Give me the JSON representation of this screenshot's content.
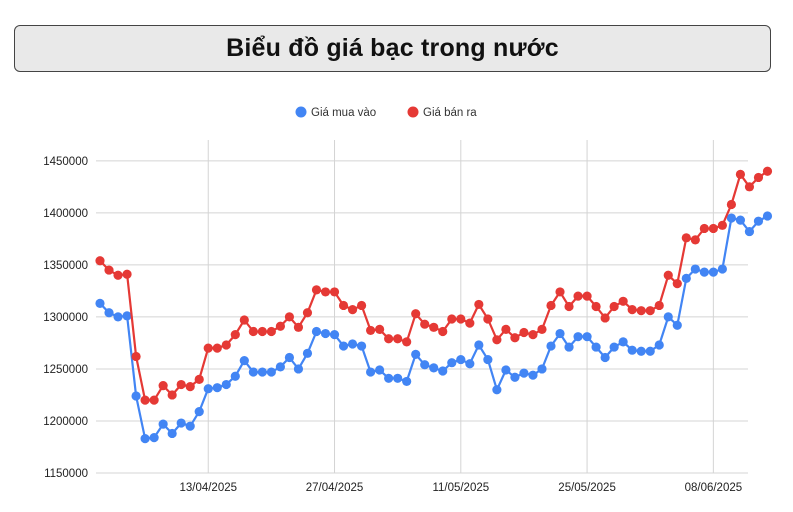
{
  "title": "Biểu đồ giá bạc trong nước",
  "colors": {
    "buy": "#4285F4",
    "sell": "#E53935",
    "grid": "#d4d4d4"
  },
  "chart_data": {
    "type": "line",
    "title": "Biểu đồ giá bạc trong nước",
    "xlabel": "",
    "ylabel": "",
    "ylim": [
      1150000,
      1470000
    ],
    "yticks": [
      1150000,
      1200000,
      1250000,
      1300000,
      1350000,
      1400000,
      1450000
    ],
    "ytick_labels": [
      "1150000",
      "1200000",
      "1250000",
      "1300000",
      "1350000",
      "1400000",
      "1450000"
    ],
    "xticks": [
      {
        "index": 12,
        "label": "13/04/2025"
      },
      {
        "index": 26,
        "label": "27/04/2025"
      },
      {
        "index": 40,
        "label": "11/05/2025"
      },
      {
        "index": 54,
        "label": "25/05/2025"
      },
      {
        "index": 68,
        "label": "08/06/2025"
      }
    ],
    "grid": true,
    "legend_position": "top",
    "series": [
      {
        "name": "Giá mua vào",
        "color": "#4285F4",
        "values": [
          1313000,
          1304000,
          1300000,
          1301000,
          1224000,
          1183000,
          1184000,
          1197000,
          1188000,
          1198000,
          1195000,
          1209000,
          1231000,
          1232000,
          1235000,
          1243000,
          1258000,
          1247000,
          1247000,
          1247000,
          1252000,
          1261000,
          1250000,
          1265000,
          1286000,
          1284000,
          1283000,
          1272000,
          1274000,
          1272000,
          1247000,
          1249000,
          1241000,
          1241000,
          1238000,
          1264000,
          1254000,
          1251000,
          1248000,
          1256000,
          1259000,
          1255000,
          1273000,
          1259000,
          1230000,
          1249000,
          1242000,
          1246000,
          1244000,
          1250000,
          1272000,
          1284000,
          1271000,
          1281000,
          1281000,
          1271000,
          1261000,
          1271000,
          1276000,
          1268000,
          1267000,
          1267000,
          1273000,
          1300000,
          1292000,
          1337000,
          1346000,
          1343000,
          1343000,
          1346000,
          1395000,
          1393000,
          1382000,
          1392000,
          1397000
        ]
      },
      {
        "name": "Giá bán ra",
        "color": "#E53935",
        "values": [
          1354000,
          1345000,
          1340000,
          1341000,
          1262000,
          1220000,
          1220000,
          1234000,
          1225000,
          1235000,
          1233000,
          1240000,
          1270000,
          1270000,
          1273000,
          1283000,
          1297000,
          1286000,
          1286000,
          1286000,
          1291000,
          1300000,
          1290000,
          1304000,
          1326000,
          1324000,
          1324000,
          1311000,
          1307000,
          1311000,
          1287000,
          1288000,
          1279000,
          1279000,
          1276000,
          1303000,
          1293000,
          1290000,
          1286000,
          1298000,
          1298000,
          1294000,
          1312000,
          1298000,
          1278000,
          1288000,
          1280000,
          1285000,
          1283000,
          1288000,
          1311000,
          1324000,
          1310000,
          1320000,
          1320000,
          1310000,
          1299000,
          1310000,
          1315000,
          1307000,
          1306000,
          1306000,
          1311000,
          1340000,
          1332000,
          1376000,
          1374000,
          1385000,
          1385000,
          1388000,
          1408000,
          1437000,
          1425000,
          1434000,
          1440000
        ]
      }
    ]
  }
}
